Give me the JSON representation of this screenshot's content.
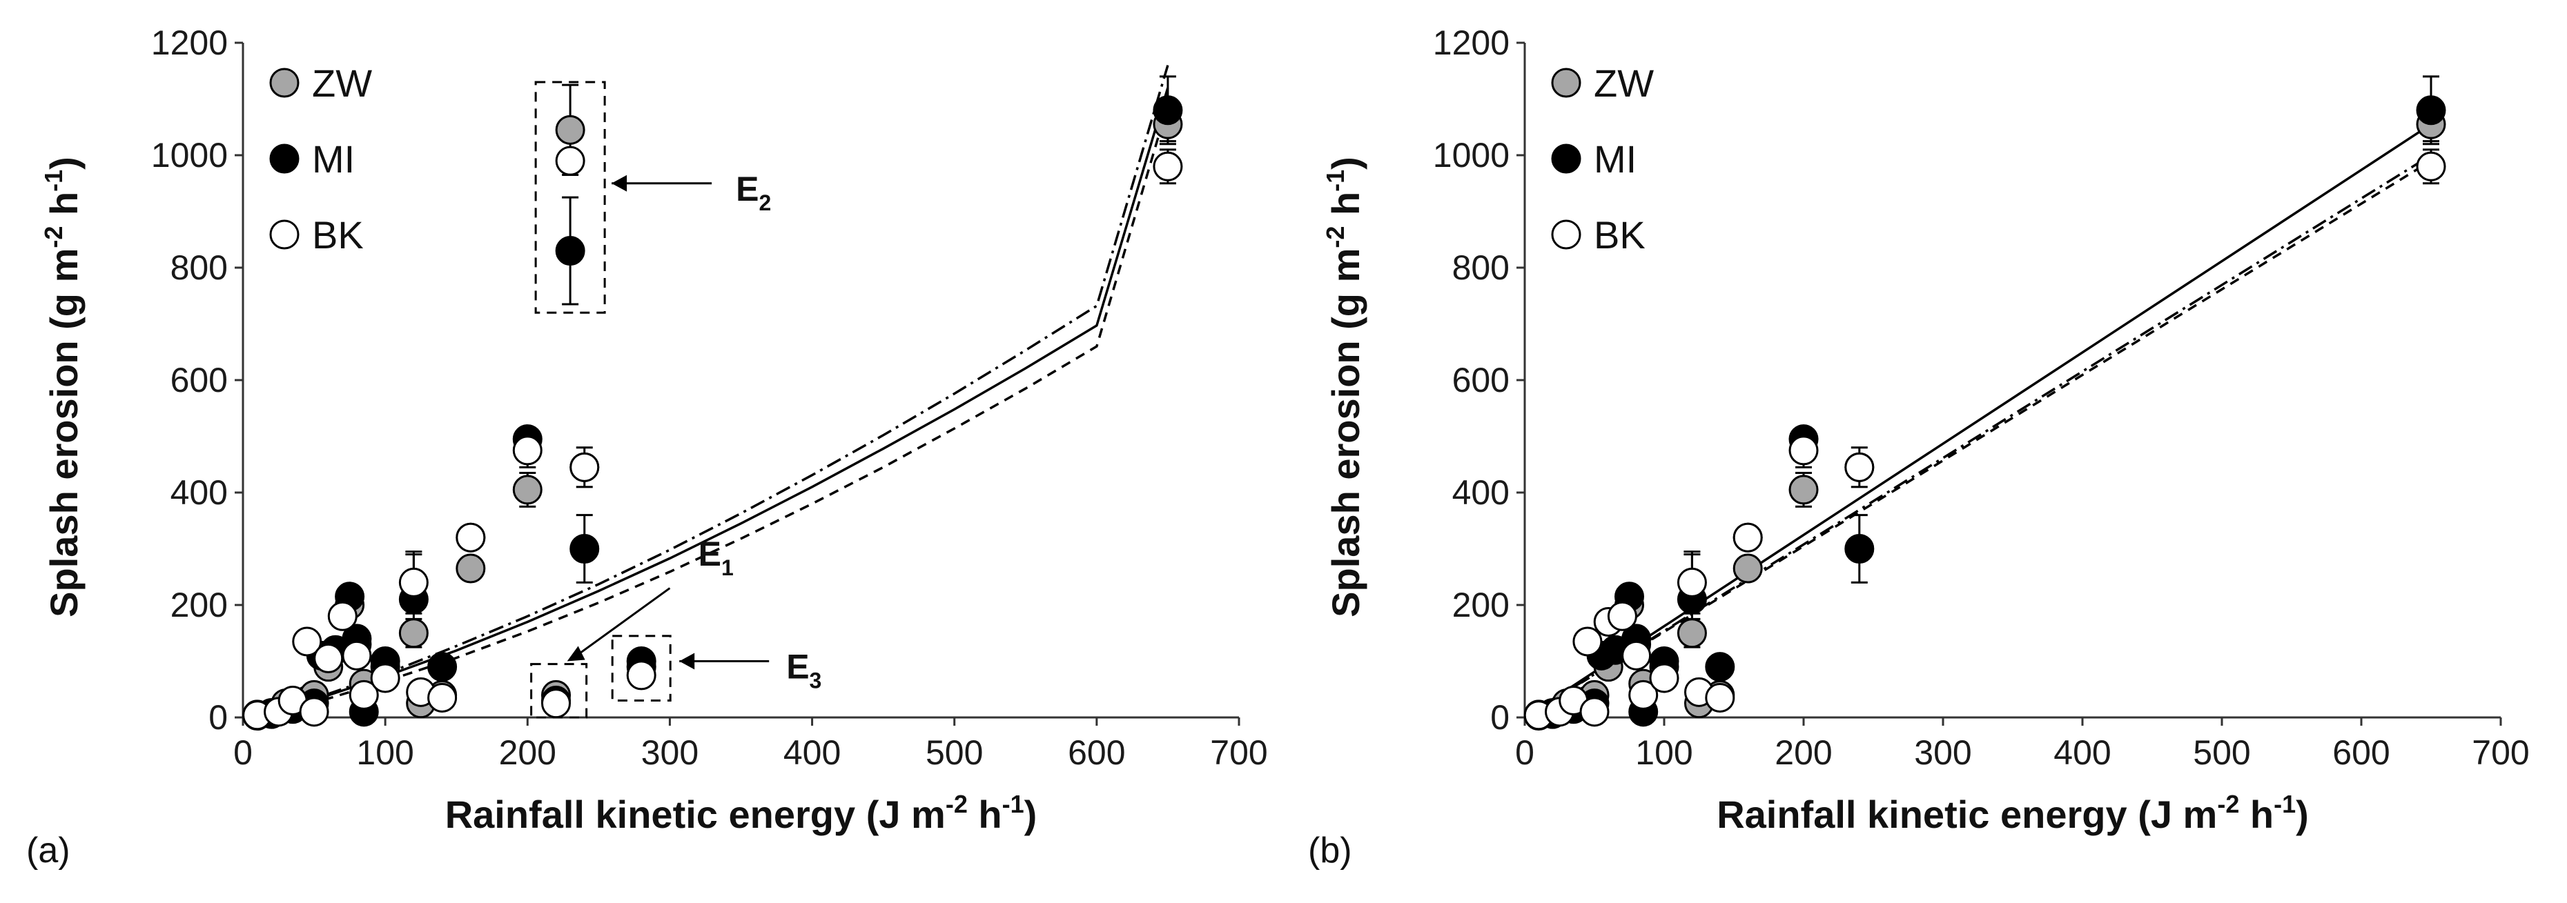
{
  "chart_data": [
    {
      "type": "scatter",
      "panel_label": "(a)",
      "xlabel": {
        "main": "Rainfall kinetic energy (J m",
        "sup1": "-2",
        "mid": " h",
        "sup2": "-1",
        "end": ")"
      },
      "ylabel": {
        "main": "Splash erosion (g m",
        "sup1": "-2",
        "mid": " h",
        "sup2": "-1",
        "end": ")"
      },
      "xlim": [
        0,
        700
      ],
      "ylim": [
        0,
        1200
      ],
      "xticks": [
        "0",
        "100",
        "200",
        "300",
        "400",
        "500",
        "600",
        "700"
      ],
      "yticks": [
        "0",
        "200",
        "400",
        "600",
        "800",
        "1000",
        "1200"
      ],
      "legend_position": "top-left",
      "series": [
        {
          "name": "ZW",
          "style": "gray",
          "points": [
            [
              10,
              5
            ],
            [
              20,
              8
            ],
            [
              30,
              25
            ],
            [
              45,
              30
            ],
            [
              50,
              40
            ],
            [
              60,
              90
            ],
            [
              75,
              200
            ],
            [
              80,
              130
            ],
            [
              85,
              60
            ],
            [
              100,
              90
            ],
            [
              120,
              150
            ],
            [
              125,
              25
            ],
            [
              140,
              40
            ],
            [
              160,
              265
            ],
            [
              200,
              405
            ],
            [
              240,
              445
            ],
            [
              220,
              40
            ],
            [
              280,
              90
            ],
            [
              650,
              1055
            ]
          ]
        },
        {
          "name": "MI",
          "style": "black",
          "points": [
            [
              10,
              3
            ],
            [
              20,
              6
            ],
            [
              35,
              15
            ],
            [
              50,
              25
            ],
            [
              55,
              110
            ],
            [
              65,
              120
            ],
            [
              75,
              215
            ],
            [
              80,
              140
            ],
            [
              85,
              10
            ],
            [
              100,
              100
            ],
            [
              120,
              210
            ],
            [
              140,
              90
            ],
            [
              160,
              320
            ],
            [
              200,
              495
            ],
            [
              240,
              300
            ],
            [
              220,
              30
            ],
            [
              280,
              100
            ],
            [
              650,
              1080
            ]
          ]
        },
        {
          "name": "BK",
          "style": "white",
          "points": [
            [
              10,
              4
            ],
            [
              25,
              10
            ],
            [
              35,
              30
            ],
            [
              45,
              135
            ],
            [
              50,
              10
            ],
            [
              60,
              105
            ],
            [
              70,
              180
            ],
            [
              80,
              110
            ],
            [
              85,
              40
            ],
            [
              100,
              70
            ],
            [
              120,
              240
            ],
            [
              125,
              45
            ],
            [
              140,
              35
            ],
            [
              160,
              320
            ],
            [
              200,
              475
            ],
            [
              240,
              445
            ],
            [
              220,
              25
            ],
            [
              280,
              75
            ],
            [
              650,
              980
            ]
          ]
        }
      ],
      "error_bars": [
        {
          "series": "ZW",
          "x": 120,
          "y": 150,
          "err": 25
        },
        {
          "series": "MI",
          "x": 120,
          "y": 210,
          "err": 80
        },
        {
          "series": "BK",
          "x": 120,
          "y": 240,
          "err": 55
        },
        {
          "series": "BK",
          "x": 160,
          "y": 320,
          "err": 20
        },
        {
          "series": "ZW",
          "x": 160,
          "y": 265,
          "err": 15
        },
        {
          "series": "ZW",
          "x": 200,
          "y": 405,
          "err": 30
        },
        {
          "series": "MI",
          "x": 200,
          "y": 495,
          "err": 15
        },
        {
          "series": "BK",
          "x": 200,
          "y": 475,
          "err": 30
        },
        {
          "series": "BK",
          "x": 240,
          "y": 445,
          "err": 35
        },
        {
          "series": "MI",
          "x": 240,
          "y": 300,
          "err": 60
        },
        {
          "series": "ZW",
          "x": 650,
          "y": 1055,
          "err": 30
        },
        {
          "series": "MI",
          "x": 650,
          "y": 1080,
          "err": 60
        },
        {
          "series": "BK",
          "x": 650,
          "y": 980,
          "err": 30
        }
      ],
      "outlier_group_E2": {
        "label_main": "E",
        "label_sub": "2",
        "x": 230,
        "points": [
          {
            "series": "ZW",
            "y": 1045
          },
          {
            "series": "BK",
            "y": 990
          },
          {
            "series": "MI",
            "y": 830
          }
        ],
        "error_bars": [
          {
            "series": "ZW",
            "y": 1045,
            "err": 80
          },
          {
            "series": "MI",
            "y": 830,
            "err": 95
          }
        ]
      },
      "annotation_E1": {
        "label_main": "E",
        "label_sub": "1"
      },
      "annotation_E3": {
        "label_main": "E",
        "label_sub": "3"
      },
      "fit_curves": [
        {
          "series": "ZW",
          "dash": "solid",
          "x": [
            0,
            50,
            100,
            150,
            200,
            250,
            300,
            350,
            400,
            450,
            500,
            550,
            600,
            650
          ],
          "y": [
            0,
            31,
            73,
            119,
            170,
            225,
            283,
            345,
            410,
            478,
            548,
            621,
            697,
            1120
          ]
        },
        {
          "series": "MI",
          "dash": "dashdot",
          "x": [
            0,
            50,
            100,
            150,
            200,
            250,
            300,
            350,
            400,
            450,
            500,
            550,
            600,
            650
          ],
          "y": [
            0,
            33,
            77,
            127,
            180,
            237,
            298,
            363,
            431,
            502,
            576,
            653,
            732,
            1160
          ]
        },
        {
          "series": "BK",
          "dash": "dashed",
          "x": [
            0,
            50,
            100,
            150,
            200,
            250,
            300,
            350,
            400,
            450,
            500,
            550,
            600,
            650
          ],
          "y": [
            0,
            26,
            64,
            106,
            153,
            204,
            259,
            318,
            380,
            445,
            514,
            585,
            660,
            1090
          ]
        }
      ]
    },
    {
      "type": "scatter",
      "panel_label": "(b)",
      "xlabel": {
        "main": "Rainfall kinetic energy (J m",
        "sup1": "-2",
        "mid": " h",
        "sup2": "-1",
        "end": ")"
      },
      "ylabel": {
        "main": "Splash erosion (g m",
        "sup1": "-2",
        "mid": " h",
        "sup2": "-1",
        "end": ")"
      },
      "xlim": [
        0,
        700
      ],
      "ylim": [
        0,
        1200
      ],
      "xticks": [
        "0",
        "100",
        "200",
        "300",
        "400",
        "500",
        "600",
        "700"
      ],
      "yticks": [
        "0",
        "200",
        "400",
        "600",
        "800",
        "1000",
        "1200"
      ],
      "legend_position": "top-left",
      "series": [
        {
          "name": "ZW",
          "style": "gray",
          "points": [
            [
              10,
              5
            ],
            [
              20,
              8
            ],
            [
              30,
              25
            ],
            [
              45,
              30
            ],
            [
              50,
              40
            ],
            [
              60,
              90
            ],
            [
              75,
              200
            ],
            [
              80,
              130
            ],
            [
              85,
              60
            ],
            [
              100,
              90
            ],
            [
              120,
              150
            ],
            [
              125,
              25
            ],
            [
              140,
              40
            ],
            [
              160,
              265
            ],
            [
              200,
              405
            ],
            [
              240,
              445
            ],
            [
              650,
              1055
            ]
          ]
        },
        {
          "name": "MI",
          "style": "black",
          "points": [
            [
              10,
              3
            ],
            [
              20,
              6
            ],
            [
              35,
              15
            ],
            [
              50,
              25
            ],
            [
              55,
              110
            ],
            [
              65,
              120
            ],
            [
              75,
              215
            ],
            [
              80,
              140
            ],
            [
              85,
              10
            ],
            [
              100,
              100
            ],
            [
              120,
              210
            ],
            [
              140,
              90
            ],
            [
              160,
              320
            ],
            [
              200,
              495
            ],
            [
              240,
              300
            ],
            [
              650,
              1080
            ]
          ]
        },
        {
          "name": "BK",
          "style": "white",
          "points": [
            [
              10,
              4
            ],
            [
              25,
              10
            ],
            [
              35,
              30
            ],
            [
              45,
              135
            ],
            [
              50,
              10
            ],
            [
              60,
              170
            ],
            [
              70,
              180
            ],
            [
              80,
              110
            ],
            [
              85,
              40
            ],
            [
              100,
              70
            ],
            [
              120,
              240
            ],
            [
              125,
              45
            ],
            [
              140,
              35
            ],
            [
              160,
              320
            ],
            [
              200,
              475
            ],
            [
              240,
              445
            ],
            [
              650,
              980
            ]
          ]
        }
      ],
      "error_bars": [
        {
          "series": "ZW",
          "x": 120,
          "y": 150,
          "err": 25
        },
        {
          "series": "MI",
          "x": 120,
          "y": 210,
          "err": 80
        },
        {
          "series": "BK",
          "x": 120,
          "y": 240,
          "err": 55
        },
        {
          "series": "BK",
          "x": 160,
          "y": 320,
          "err": 20
        },
        {
          "series": "ZW",
          "x": 160,
          "y": 265,
          "err": 15
        },
        {
          "series": "ZW",
          "x": 200,
          "y": 405,
          "err": 30
        },
        {
          "series": "MI",
          "x": 200,
          "y": 495,
          "err": 15
        },
        {
          "series": "BK",
          "x": 200,
          "y": 475,
          "err": 30
        },
        {
          "series": "BK",
          "x": 240,
          "y": 445,
          "err": 35
        },
        {
          "series": "MI",
          "x": 240,
          "y": 300,
          "err": 60
        },
        {
          "series": "ZW",
          "x": 650,
          "y": 1055,
          "err": 30
        },
        {
          "series": "MI",
          "x": 650,
          "y": 1080,
          "err": 60
        },
        {
          "series": "BK",
          "x": 650,
          "y": 980,
          "err": 30
        }
      ],
      "fit_lines": [
        {
          "series": "MI",
          "dash": "solid",
          "x": [
            0,
            650
          ],
          "y": [
            0,
            1055
          ]
        },
        {
          "series": "ZW",
          "dash": "dashdot",
          "x": [
            0,
            650
          ],
          "y": [
            0,
            1000
          ]
        },
        {
          "series": "BK",
          "dash": "dashed",
          "x": [
            0,
            650
          ],
          "y": [
            0,
            990
          ]
        }
      ]
    }
  ],
  "colors": {
    "gray": "#a6a6a6",
    "black": "#000000",
    "white": "#ffffff",
    "edge": "#000000"
  }
}
